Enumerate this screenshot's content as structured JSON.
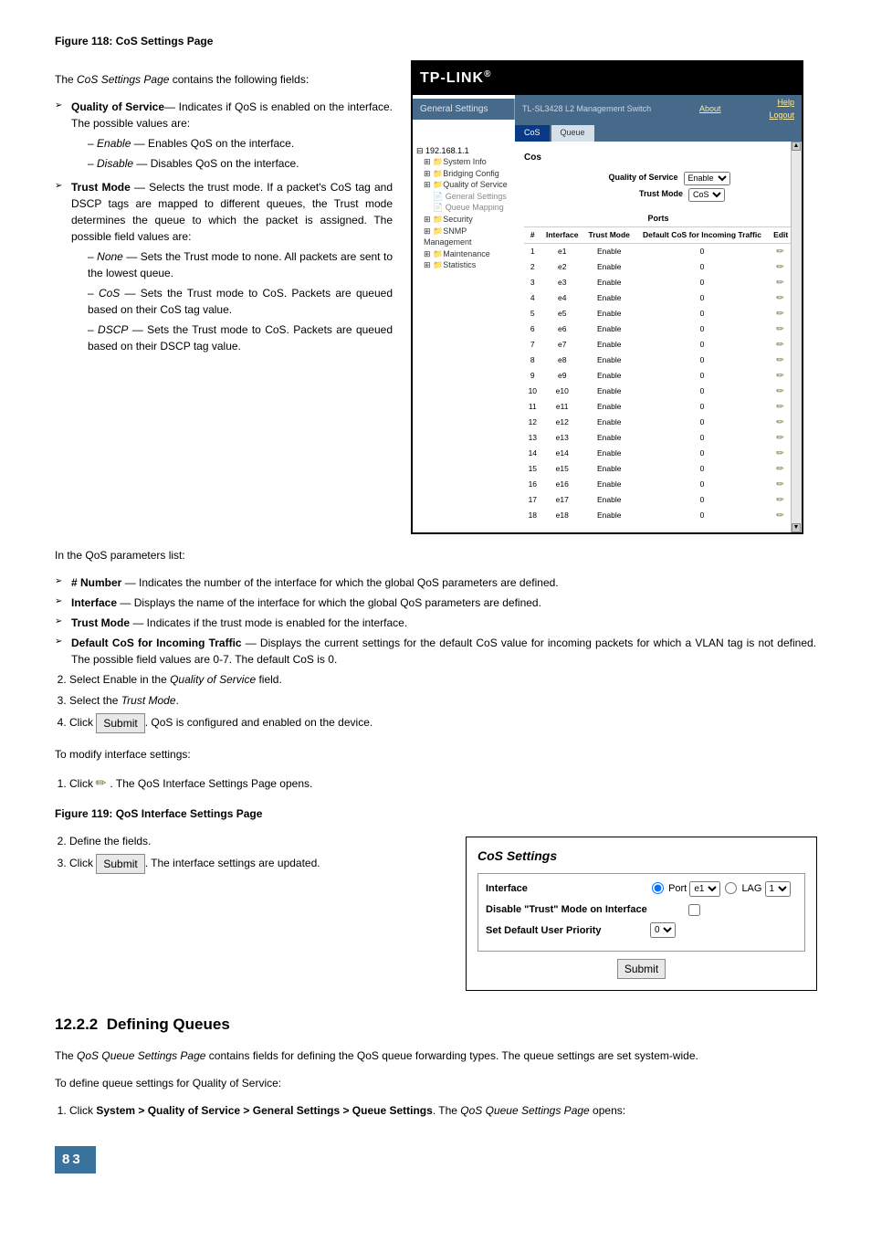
{
  "fig118_caption": "Figure 118: CoS Settings Page",
  "intro1_pre": "The ",
  "intro1_ital": "CoS Settings Page",
  "intro1_post": " contains the following fields:",
  "bullets1": [
    {
      "term": "Quality of Service",
      "rest": "— Indicates if QoS is enabled on the interface. The possible values are:",
      "subs": [
        {
          "ital": "Enable",
          "rest": " — Enables QoS on the interface."
        },
        {
          "ital": "Disable",
          "rest": " — Disables QoS on the interface."
        }
      ]
    },
    {
      "term": "Trust Mode",
      "rest": " — Selects the trust mode. If a packet's CoS tag and DSCP tags are mapped to different queues, the Trust mode determines the queue to which the packet is assigned. The possible field values are:",
      "subs": [
        {
          "ital": "None",
          "rest": " — Sets the Trust mode to none. All packets are sent to the lowest queue."
        },
        {
          "ital": "CoS",
          "rest": " — Sets the Trust mode to CoS. Packets are queued based on their CoS tag value."
        },
        {
          "ital": "DSCP",
          "rest": " — Sets the Trust mode to CoS. Packets are queued based on their DSCP tag value."
        }
      ]
    }
  ],
  "shot1": {
    "logo": "TP-LINK",
    "left_title": "General Settings",
    "header_main": "TL-SL3428 L2 Management Switch",
    "about": "About",
    "help": "Help",
    "logout": "Logout",
    "tab_active": "CoS",
    "tab_inactive": "Queue",
    "tree": {
      "ip": "192.168.1.1",
      "items": [
        "System Info",
        "Bridging Config",
        "Quality of Service"
      ],
      "qos_children": [
        "General Settings",
        "Queue Mapping"
      ],
      "rest": [
        "Security",
        "SNMP Management",
        "Maintenance",
        "Statistics"
      ]
    },
    "cos_label": "Cos",
    "form": [
      {
        "label": "Quality of Service",
        "value": "Enable"
      },
      {
        "label": "Trust Mode",
        "value": "CoS"
      }
    ],
    "ports_title": "Ports",
    "ports_cols": [
      "#",
      "Interface",
      "Trust Mode",
      "Default CoS for Incoming Traffic",
      "Edit"
    ],
    "ports_rows": [
      {
        "n": 1,
        "if": "e1",
        "tm": "Enable",
        "d": "0"
      },
      {
        "n": 2,
        "if": "e2",
        "tm": "Enable",
        "d": "0"
      },
      {
        "n": 3,
        "if": "e3",
        "tm": "Enable",
        "d": "0"
      },
      {
        "n": 4,
        "if": "e4",
        "tm": "Enable",
        "d": "0"
      },
      {
        "n": 5,
        "if": "e5",
        "tm": "Enable",
        "d": "0"
      },
      {
        "n": 6,
        "if": "e6",
        "tm": "Enable",
        "d": "0"
      },
      {
        "n": 7,
        "if": "e7",
        "tm": "Enable",
        "d": "0"
      },
      {
        "n": 8,
        "if": "e8",
        "tm": "Enable",
        "d": "0"
      },
      {
        "n": 9,
        "if": "e9",
        "tm": "Enable",
        "d": "0"
      },
      {
        "n": 10,
        "if": "e10",
        "tm": "Enable",
        "d": "0"
      },
      {
        "n": 11,
        "if": "e11",
        "tm": "Enable",
        "d": "0"
      },
      {
        "n": 12,
        "if": "e12",
        "tm": "Enable",
        "d": "0"
      },
      {
        "n": 13,
        "if": "e13",
        "tm": "Enable",
        "d": "0"
      },
      {
        "n": 14,
        "if": "e14",
        "tm": "Enable",
        "d": "0"
      },
      {
        "n": 15,
        "if": "e15",
        "tm": "Enable",
        "d": "0"
      },
      {
        "n": 16,
        "if": "e16",
        "tm": "Enable",
        "d": "0"
      },
      {
        "n": 17,
        "if": "e17",
        "tm": "Enable",
        "d": "0"
      },
      {
        "n": 18,
        "if": "e18",
        "tm": "Enable",
        "d": "0"
      }
    ]
  },
  "param_intro": "In the QoS parameters list:",
  "bullets2": [
    {
      "term": "# Number",
      "rest": " — Indicates the number of the interface for which the global QoS parameters are defined."
    },
    {
      "term": "Interface",
      "rest": " — Displays the name of the interface for which the global QoS parameters are defined."
    },
    {
      "term": "Trust Mode",
      "rest": " — Indicates if the trust mode is enabled for the interface."
    },
    {
      "term": "Default CoS for Incoming Traffic",
      "rest": " — Displays the current settings for the default CoS value for incoming packets for which a VLAN tag is not defined. The possible field values are 0-7. The default CoS is 0."
    }
  ],
  "steps1": [
    {
      "pre": "Select Enable in the ",
      "ital": "Quality of Service",
      "post": " field."
    },
    {
      "pre": "Select the ",
      "ital": "Trust Mode",
      "post": "."
    }
  ],
  "step4_pre": "Click ",
  "step4_btn": "Submit",
  "step4_post": ". QoS is configured and enabled on the device.",
  "modify_intro": "To modify interface settings:",
  "modify_step1_a": "Click ",
  "modify_step1_b": " . The QoS Interface Settings Page opens.",
  "fig119_caption": "Figure 119: QoS Interface Settings Page",
  "steps2": [
    "Define the fields."
  ],
  "step2_3_pre": "Click ",
  "step2_3_btn": "Submit",
  "step2_3_post": ". The interface settings are updated.",
  "shot2": {
    "title": "CoS Settings",
    "rows": [
      {
        "label": "Interface",
        "port_label": "Port",
        "port_val": "e1",
        "lag_label": "LAG",
        "lag_val": "1"
      },
      {
        "label": "Disable \"Trust\" Mode on Interface"
      },
      {
        "label": "Set Default User Priority",
        "sel": "0"
      }
    ],
    "submit": "Submit"
  },
  "sec_num": "12.2.2",
  "sec_title": "Defining Queues",
  "sec_p1_a": "The ",
  "sec_p1_ital": "QoS Queue Settings Page",
  "sec_p1_b": " contains fields for defining the QoS queue forwarding types. The queue settings are set system-wide.",
  "sec_p2": "To define queue settings for Quality of Service:",
  "sec_step1_a": "Click ",
  "sec_step1_b": "System > Quality of Service > General Settings > Queue Settings",
  "sec_step1_c": ". The ",
  "sec_step1_ital": "QoS Queue Settings Page",
  "sec_step1_d": " opens:",
  "page_number": "83"
}
